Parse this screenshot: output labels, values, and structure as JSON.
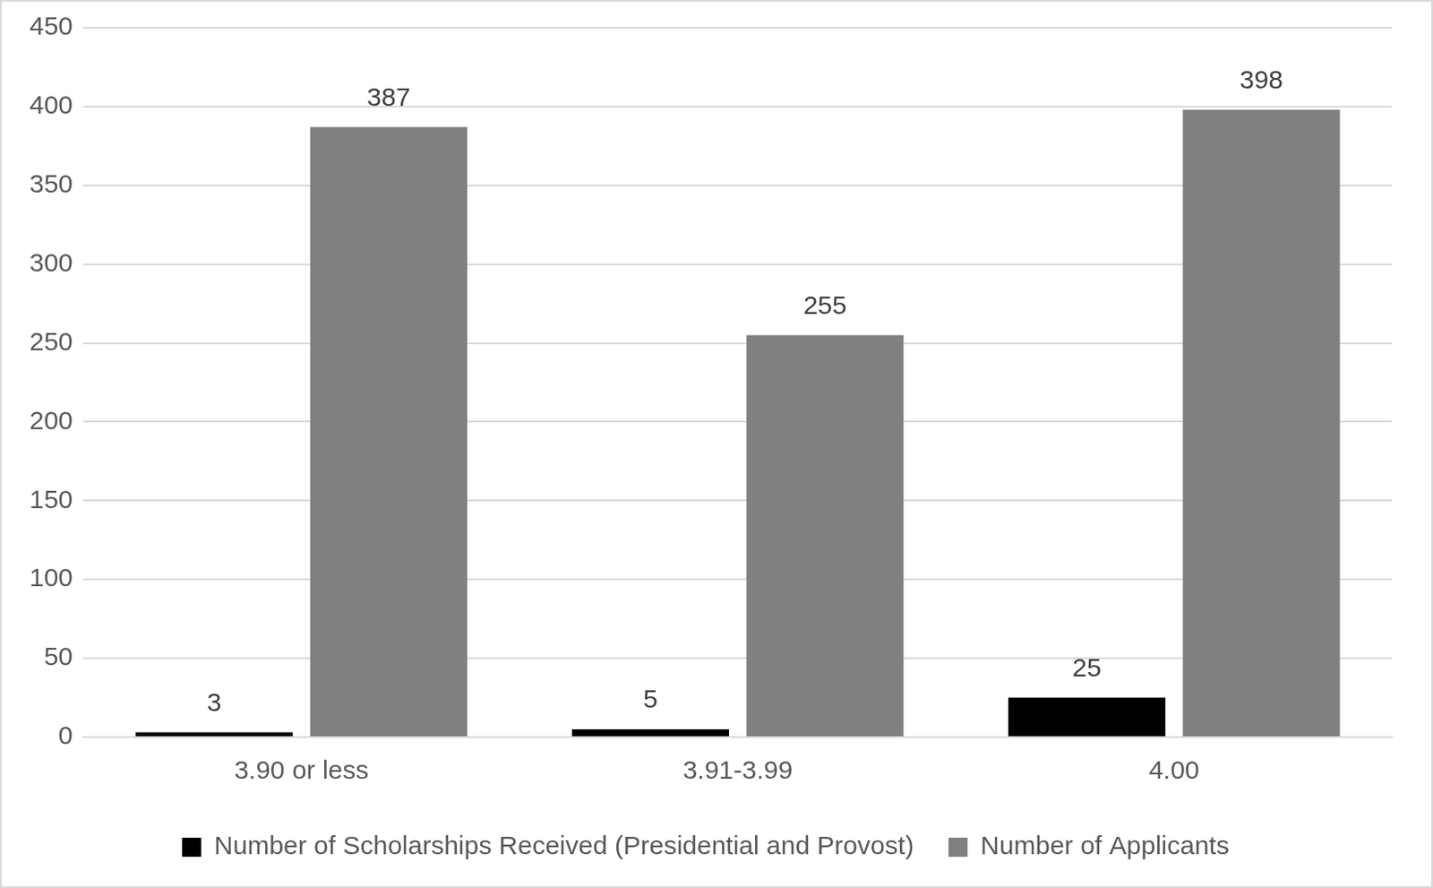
{
  "chart_data": {
    "type": "bar",
    "categories": [
      "3.90 or less",
      "3.91-3.99",
      "4.00"
    ],
    "series": [
      {
        "name": "Number of Scholarships Received (Presidential and Provost)",
        "color": "#000000",
        "values": [
          3,
          5,
          25
        ]
      },
      {
        "name": "Number of Applicants",
        "color": "#808080",
        "values": [
          387,
          255,
          398
        ]
      }
    ],
    "ylim": [
      0,
      450
    ],
    "yticks": [
      0,
      50,
      100,
      150,
      200,
      250,
      300,
      350,
      400,
      450
    ],
    "grid": true,
    "legend": "bottom",
    "data_labels": true
  }
}
